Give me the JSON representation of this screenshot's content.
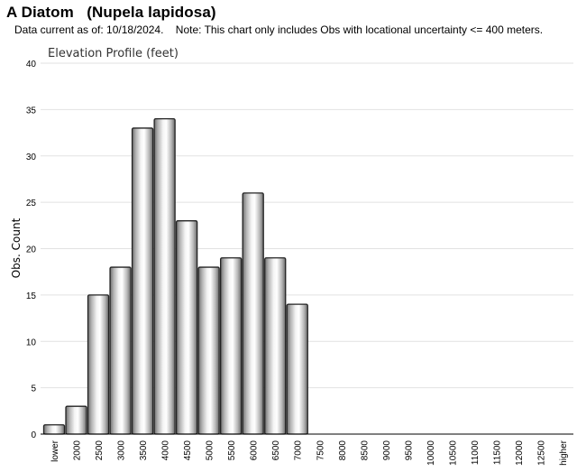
{
  "header": {
    "title": "A Diatom   (Nupela lapidosa)",
    "subtitle": "Data current as of: 10/18/2024.    Note: This chart only includes Obs with locational uncertainty <= 400 meters."
  },
  "chart_data": {
    "type": "bar",
    "title": "Elevation Profile (feet)",
    "xlabel": "",
    "ylabel": "Obs. Count",
    "ylim": [
      0,
      40
    ],
    "yticks": [
      0,
      5,
      10,
      15,
      20,
      25,
      30,
      35,
      40
    ],
    "grid": true,
    "categories": [
      "lower",
      "2000",
      "2500",
      "3000",
      "3500",
      "4000",
      "4500",
      "5000",
      "5500",
      "6000",
      "6500",
      "7000",
      "7500",
      "8000",
      "8500",
      "9000",
      "9500",
      "10000",
      "10500",
      "11000",
      "11500",
      "12000",
      "12500",
      "higher"
    ],
    "values": [
      1,
      3,
      15,
      18,
      33,
      34,
      23,
      18,
      19,
      26,
      19,
      14,
      0,
      0,
      0,
      0,
      0,
      0,
      0,
      0,
      0,
      0,
      0,
      0
    ]
  }
}
